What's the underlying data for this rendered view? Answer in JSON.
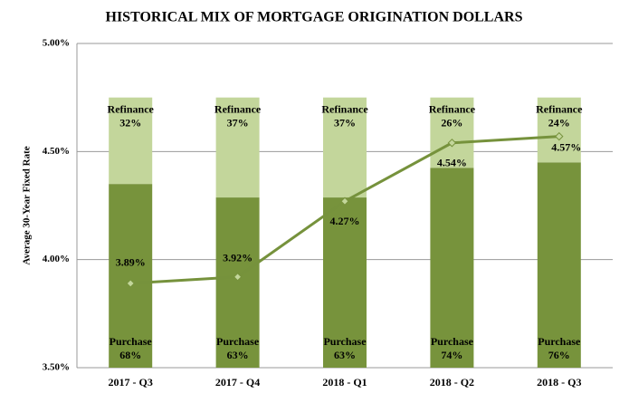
{
  "chart_data": {
    "type": "bar_line",
    "title": "HISTORICAL MIX OF MORTGAGE ORIGINATION DOLLARS",
    "y_label": "Average  30-Year Fixed Rate",
    "categories": [
      "2017 - Q3",
      "2017 - Q4",
      "2018 - Q1",
      "2018 - Q2",
      "2018 - Q3"
    ],
    "ylim": [
      3.5,
      5.0
    ],
    "yticks": [
      {
        "value": 3.5,
        "label": "3.50%"
      },
      {
        "value": 4.0,
        "label": "4.00%"
      },
      {
        "value": 4.5,
        "label": "4.50%"
      },
      {
        "value": 5.0,
        "label": "5.00%"
      }
    ],
    "y2lim": [
      0,
      120
    ],
    "grid": true,
    "series": [
      {
        "name": "Purchase",
        "color": "#77933c",
        "axis": "y2",
        "stack": true,
        "values": [
          68,
          63,
          63,
          74,
          76
        ],
        "value_labels": [
          "68%",
          "63%",
          "63%",
          "74%",
          "76%"
        ]
      },
      {
        "name": "Refinance",
        "color": "#c3d69b",
        "axis": "y2",
        "stack": true,
        "values": [
          32,
          37,
          37,
          26,
          24
        ],
        "value_labels": [
          "32%",
          "37%",
          "37%",
          "26%",
          "24%"
        ]
      },
      {
        "name": "Rate",
        "type": "line",
        "color": "#76923c",
        "values": [
          3.89,
          3.92,
          4.27,
          4.54,
          4.57
        ],
        "value_labels": [
          "3.89%",
          "3.92%",
          "4.27%",
          "4.54%",
          "4.57%"
        ]
      }
    ]
  }
}
